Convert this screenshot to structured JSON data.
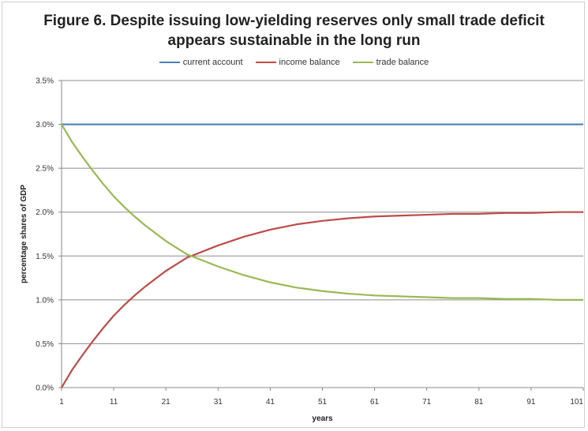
{
  "chart_data": {
    "type": "line",
    "title": "Figure 6. Despite issuing low-yielding reserves only small trade deficit appears sustainable in the long run",
    "title_lines": [
      "Figure 6. Despite issuing low-yielding reserves only small trade deficit",
      "appears sustainable in the long run"
    ],
    "xlabel": "years",
    "ylabel": "percentage shares of GDP",
    "xlim": [
      1,
      101
    ],
    "ylim": [
      0,
      3.5
    ],
    "x_ticks": [
      "1",
      "11",
      "21",
      "31",
      "41",
      "51",
      "61",
      "71",
      "81",
      "91",
      "101"
    ],
    "y_ticks": [
      "0.0%",
      "0.5%",
      "1.0%",
      "1.5%",
      "2.0%",
      "2.5%",
      "3.0%",
      "3.5%"
    ],
    "grid": "horizontal",
    "legend_position": "top",
    "x": [
      1,
      3,
      5,
      7,
      9,
      11,
      13,
      15,
      17,
      19,
      21,
      25,
      31,
      36,
      41,
      46,
      51,
      56,
      61,
      66,
      71,
      76,
      81,
      86,
      91,
      96,
      101
    ],
    "series": [
      {
        "name": "current account",
        "color": "#4a7ebb",
        "values": [
          3.0,
          3.0,
          3.0,
          3.0,
          3.0,
          3.0,
          3.0,
          3.0,
          3.0,
          3.0,
          3.0,
          3.0,
          3.0,
          3.0,
          3.0,
          3.0,
          3.0,
          3.0,
          3.0,
          3.0,
          3.0,
          3.0,
          3.0,
          3.0,
          3.0,
          3.0,
          3.0
        ]
      },
      {
        "name": "income balance",
        "color": "#be4b48",
        "values": [
          0.0,
          0.2,
          0.37,
          0.53,
          0.68,
          0.82,
          0.94,
          1.05,
          1.15,
          1.24,
          1.33,
          1.48,
          1.62,
          1.72,
          1.8,
          1.86,
          1.9,
          1.93,
          1.95,
          1.96,
          1.97,
          1.98,
          1.98,
          1.99,
          1.99,
          2.0,
          2.0
        ]
      },
      {
        "name": "trade balance",
        "color": "#98b954",
        "values": [
          3.0,
          2.8,
          2.63,
          2.47,
          2.32,
          2.18,
          2.06,
          1.95,
          1.85,
          1.76,
          1.67,
          1.52,
          1.38,
          1.28,
          1.2,
          1.14,
          1.1,
          1.07,
          1.05,
          1.04,
          1.03,
          1.02,
          1.02,
          1.01,
          1.01,
          1.0,
          1.0
        ]
      }
    ]
  }
}
